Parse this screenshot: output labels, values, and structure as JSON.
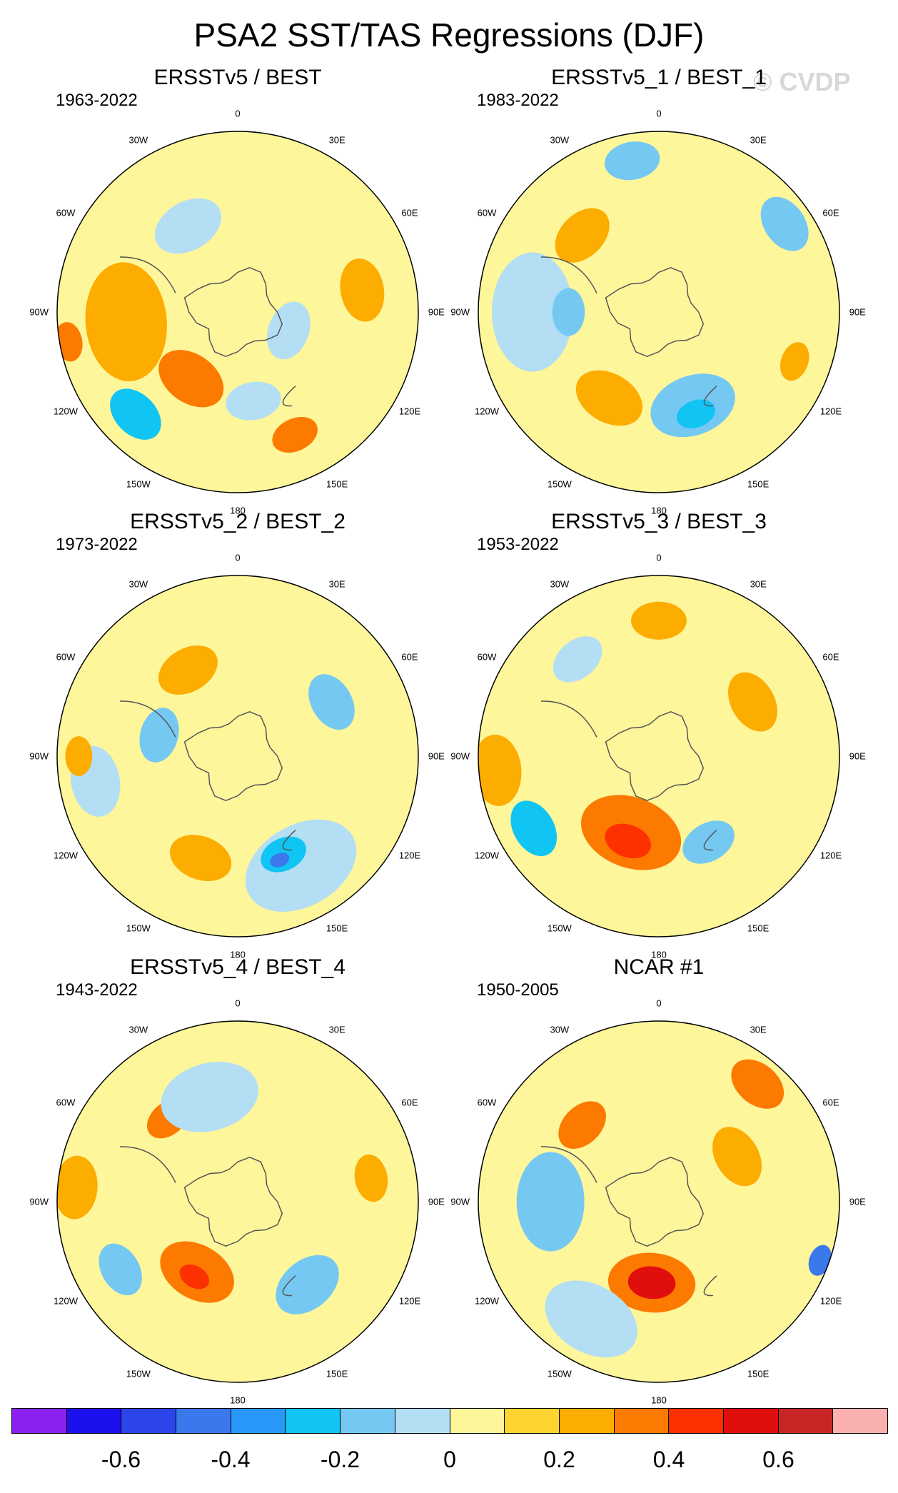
{
  "title": "PSA2 SST/TAS Regressions (DJF)",
  "watermark": "© CVDP",
  "chart_data": {
    "type": "heatmap",
    "projection": "south polar stereographic",
    "variable": "SST/TAS regression onto PSA2 index",
    "season": "DJF",
    "longitude_labels": [
      "0",
      "30E",
      "60E",
      "90E",
      "120E",
      "150E",
      "180",
      "150W",
      "120W",
      "90W",
      "60W",
      "30W"
    ],
    "panels": [
      {
        "title": "ERSSTv5 / BEST",
        "period": "1963-2022",
        "features": [
          {
            "lon": -95,
            "lat_frac": 0.62,
            "size": 0.3,
            "value": 0.2
          },
          {
            "lon": -145,
            "lat_frac": 0.45,
            "size": 0.18,
            "value": 0.3
          },
          {
            "lon": -135,
            "lat_frac": 0.8,
            "size": 0.15,
            "value": -0.3
          },
          {
            "lon": -30,
            "lat_frac": 0.55,
            "size": 0.18,
            "value": -0.1
          },
          {
            "lon": 80,
            "lat_frac": 0.7,
            "size": 0.16,
            "value": 0.2
          },
          {
            "lon": 170,
            "lat_frac": 0.5,
            "size": 0.14,
            "value": -0.1
          },
          {
            "lon": 155,
            "lat_frac": 0.75,
            "size": 0.12,
            "value": 0.3
          },
          {
            "lon": -100,
            "lat_frac": 0.95,
            "size": 0.1,
            "value": 0.3
          },
          {
            "lon": 110,
            "lat_frac": 0.3,
            "size": 0.15,
            "value": -0.1
          }
        ]
      },
      {
        "title": "ERSSTv5_1 / BEST_1",
        "period": "1983-2022",
        "features": [
          {
            "lon": -90,
            "lat_frac": 0.7,
            "size": 0.3,
            "value": -0.1
          },
          {
            "lon": -90,
            "lat_frac": 0.5,
            "size": 0.12,
            "value": -0.2
          },
          {
            "lon": -150,
            "lat_frac": 0.55,
            "size": 0.18,
            "value": 0.2
          },
          {
            "lon": 160,
            "lat_frac": 0.55,
            "size": 0.22,
            "value": -0.2
          },
          {
            "lon": 160,
            "lat_frac": 0.6,
            "size": 0.1,
            "value": -0.3
          },
          {
            "lon": -45,
            "lat_frac": 0.6,
            "size": 0.16,
            "value": 0.2
          },
          {
            "lon": 55,
            "lat_frac": 0.85,
            "size": 0.15,
            "value": -0.2
          },
          {
            "lon": -10,
            "lat_frac": 0.85,
            "size": 0.14,
            "value": -0.2
          },
          {
            "lon": 110,
            "lat_frac": 0.8,
            "size": 0.1,
            "value": 0.2
          }
        ]
      },
      {
        "title": "ERSSTv5_2 / BEST_2",
        "period": "1973-2022",
        "features": [
          {
            "lon": 150,
            "lat_frac": 0.7,
            "size": 0.3,
            "value": -0.1
          },
          {
            "lon": 155,
            "lat_frac": 0.6,
            "size": 0.12,
            "value": -0.3
          },
          {
            "lon": 158,
            "lat_frac": 0.62,
            "size": 0.05,
            "value": -0.5
          },
          {
            "lon": -160,
            "lat_frac": 0.6,
            "size": 0.16,
            "value": 0.2
          },
          {
            "lon": -75,
            "lat_frac": 0.45,
            "size": 0.14,
            "value": -0.2
          },
          {
            "lon": -30,
            "lat_frac": 0.55,
            "size": 0.16,
            "value": 0.2
          },
          {
            "lon": 60,
            "lat_frac": 0.6,
            "size": 0.15,
            "value": -0.2
          },
          {
            "lon": -100,
            "lat_frac": 0.8,
            "size": 0.18,
            "value": -0.1
          },
          {
            "lon": -90,
            "lat_frac": 0.88,
            "size": 0.1,
            "value": 0.2
          }
        ]
      },
      {
        "title": "ERSSTv5_3 / BEST_3",
        "period": "1953-2022",
        "features": [
          {
            "lon": -160,
            "lat_frac": 0.45,
            "size": 0.26,
            "value": 0.3
          },
          {
            "lon": -160,
            "lat_frac": 0.5,
            "size": 0.12,
            "value": 0.4
          },
          {
            "lon": -120,
            "lat_frac": 0.8,
            "size": 0.15,
            "value": -0.3
          },
          {
            "lon": -95,
            "lat_frac": 0.9,
            "size": 0.18,
            "value": 0.2
          },
          {
            "lon": 150,
            "lat_frac": 0.55,
            "size": 0.14,
            "value": -0.2
          },
          {
            "lon": 60,
            "lat_frac": 0.6,
            "size": 0.16,
            "value": 0.2
          },
          {
            "lon": 0,
            "lat_frac": 0.75,
            "size": 0.14,
            "value": 0.2
          },
          {
            "lon": -40,
            "lat_frac": 0.7,
            "size": 0.14,
            "value": -0.1
          }
        ]
      },
      {
        "title": "ERSSTv5_4 / BEST_4",
        "period": "1943-2022",
        "features": [
          {
            "lon": -150,
            "lat_frac": 0.45,
            "size": 0.2,
            "value": 0.3
          },
          {
            "lon": -150,
            "lat_frac": 0.48,
            "size": 0.08,
            "value": 0.4
          },
          {
            "lon": -120,
            "lat_frac": 0.75,
            "size": 0.14,
            "value": -0.2
          },
          {
            "lon": -85,
            "lat_frac": 0.9,
            "size": 0.16,
            "value": 0.2
          },
          {
            "lon": 140,
            "lat_frac": 0.6,
            "size": 0.18,
            "value": -0.2
          },
          {
            "lon": 80,
            "lat_frac": 0.75,
            "size": 0.12,
            "value": 0.2
          },
          {
            "lon": -40,
            "lat_frac": 0.6,
            "size": 0.12,
            "value": 0.3
          },
          {
            "lon": -15,
            "lat_frac": 0.6,
            "size": 0.25,
            "value": -0.1
          }
        ]
      },
      {
        "title": "NCAR #1",
        "period": "1950-2005",
        "features": [
          {
            "lon": -175,
            "lat_frac": 0.45,
            "size": 0.22,
            "value": 0.3
          },
          {
            "lon": -175,
            "lat_frac": 0.45,
            "size": 0.12,
            "value": 0.5
          },
          {
            "lon": -90,
            "lat_frac": 0.6,
            "size": 0.25,
            "value": -0.2
          },
          {
            "lon": -150,
            "lat_frac": 0.75,
            "size": 0.25,
            "value": -0.1
          },
          {
            "lon": 110,
            "lat_frac": 0.95,
            "size": 0.08,
            "value": -0.5
          },
          {
            "lon": -45,
            "lat_frac": 0.6,
            "size": 0.14,
            "value": 0.3
          },
          {
            "lon": 40,
            "lat_frac": 0.85,
            "size": 0.15,
            "value": 0.3
          },
          {
            "lon": 60,
            "lat_frac": 0.5,
            "size": 0.16,
            "value": 0.2
          }
        ]
      }
    ],
    "colorbar": {
      "levels": [
        -0.7,
        -0.6,
        -0.5,
        -0.4,
        -0.3,
        -0.2,
        -0.1,
        0,
        0.1,
        0.2,
        0.3,
        0.4,
        0.5,
        0.6,
        0.7
      ],
      "tick_labels": [
        "-0.6",
        "-0.4",
        "-0.2",
        "0",
        "0.2",
        "0.4",
        "0.6"
      ],
      "tick_values": [
        -0.6,
        -0.4,
        -0.2,
        0,
        0.2,
        0.4,
        0.6
      ],
      "colors": [
        "#8b20f0",
        "#1c10ee",
        "#2c45ea",
        "#3a78ec",
        "#2a98f8",
        "#10c4f4",
        "#75c8f2",
        "#b4def4",
        "#fdf69b",
        "#fdd430",
        "#fdac00",
        "#fd7a00",
        "#fd3000",
        "#e10e0e",
        "#c82626",
        "#fbb0b0"
      ]
    }
  }
}
